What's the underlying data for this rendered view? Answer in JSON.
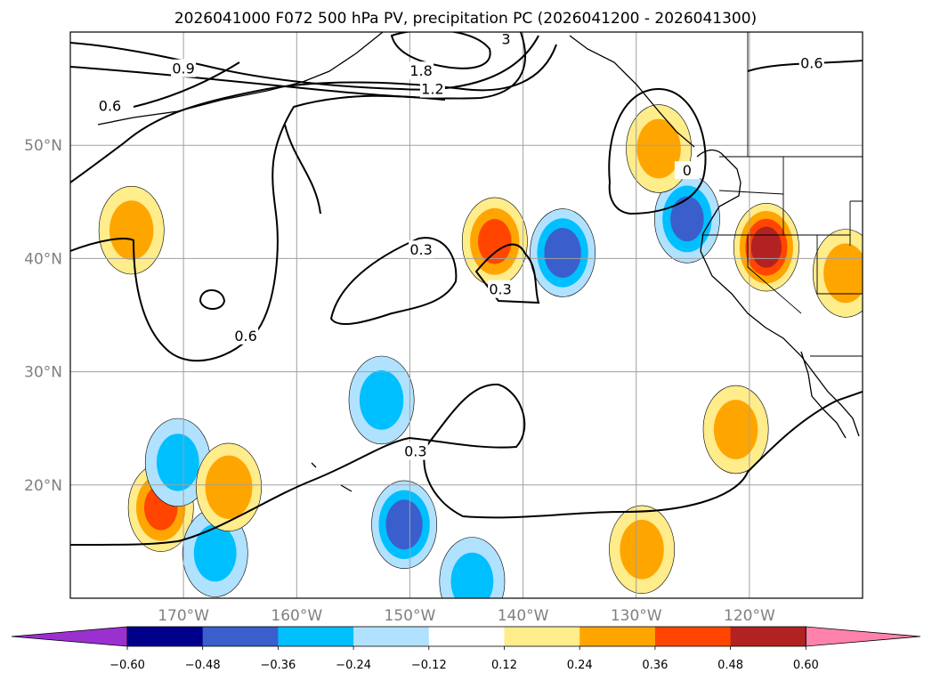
{
  "chart_data": {
    "type": "contour-map",
    "title": "2026041000 F072 500 hPa PV, precipitation PC (2026041200 - 2026041300)",
    "lon_range": [
      -180,
      -110
    ],
    "lat_range": [
      10,
      60
    ],
    "lat_ticks": [
      {
        "value": 50,
        "label": "50°N"
      },
      {
        "value": 40,
        "label": "40°N"
      },
      {
        "value": 30,
        "label": "30°N"
      },
      {
        "value": 20,
        "label": "20°N"
      }
    ],
    "lon_ticks": [
      {
        "value": -170,
        "label": "170°W"
      },
      {
        "value": -160,
        "label": "160°W"
      },
      {
        "value": -150,
        "label": "150°W"
      },
      {
        "value": -140,
        "label": "140°W"
      },
      {
        "value": -130,
        "label": "130°W"
      },
      {
        "value": -120,
        "label": "120°W"
      }
    ],
    "gridlines": true,
    "colorbar": {
      "position": "bottom",
      "extend": "both",
      "levels": [
        -0.6,
        -0.48,
        -0.36,
        -0.24,
        -0.12,
        0.12,
        0.24,
        0.36,
        0.48,
        0.6
      ],
      "tick_labels": [
        "−0.60",
        "−0.48",
        "−0.36",
        "−0.24",
        "−0.12",
        "0.12",
        "0.24",
        "0.36",
        "0.48",
        "0.60"
      ],
      "colors": [
        "#9b30d0",
        "#00008b",
        "#3a5fcd",
        "#00bfff",
        "#b0e2ff",
        "#ffffff",
        "#ffec8b",
        "#ffa500",
        "#ff4500",
        "#b22222",
        "#ff82ab"
      ]
    },
    "pv_contour_labels": [
      {
        "text": "0.9",
        "lon": -170.0,
        "lat": 56.8
      },
      {
        "text": "0.6",
        "lon": -176.5,
        "lat": 53.5
      },
      {
        "text": "1.8",
        "lon": -149.0,
        "lat": 56.6
      },
      {
        "text": "1.2",
        "lon": -148.0,
        "lat": 55.0
      },
      {
        "text": "3",
        "lon": -141.5,
        "lat": 59.4
      },
      {
        "text": "0.6",
        "lon": -114.5,
        "lat": 57.3
      },
      {
        "text": "0",
        "lon": -125.5,
        "lat": 47.8
      },
      {
        "text": "0.3",
        "lon": -149.0,
        "lat": 40.8
      },
      {
        "text": "0.3",
        "lon": -142.0,
        "lat": 37.3
      },
      {
        "text": "0.6",
        "lon": -164.5,
        "lat": 33.2
      },
      {
        "text": "0.3",
        "lon": -149.5,
        "lat": 23.0
      }
    ],
    "precip_anomalies": [
      {
        "lon": -142.5,
        "lat": 41.5,
        "value": 0.4
      },
      {
        "lon": -136.5,
        "lat": 40.5,
        "value": -0.45
      },
      {
        "lon": -118.5,
        "lat": 41.0,
        "value": 0.55
      },
      {
        "lon": -125.5,
        "lat": 43.5,
        "value": -0.4
      },
      {
        "lon": -128.0,
        "lat": 49.7,
        "value": 0.3
      },
      {
        "lon": -174.6,
        "lat": 42.5,
        "value": 0.3
      },
      {
        "lon": -152.5,
        "lat": 27.5,
        "value": -0.3
      },
      {
        "lon": -150.5,
        "lat": 16.5,
        "value": -0.45
      },
      {
        "lon": -172.0,
        "lat": 18.0,
        "value": 0.4
      },
      {
        "lon": -170.5,
        "lat": 22.0,
        "value": -0.28
      },
      {
        "lon": -167.2,
        "lat": 14.0,
        "value": -0.28
      },
      {
        "lon": -166.0,
        "lat": 19.8,
        "value": 0.35
      },
      {
        "lon": -129.5,
        "lat": 14.3,
        "value": 0.3
      },
      {
        "lon": -144.5,
        "lat": 11.5,
        "value": -0.28
      },
      {
        "lon": -111.5,
        "lat": 38.7,
        "value": 0.3
      },
      {
        "lon": -121.2,
        "lat": 24.9,
        "value": 0.3
      }
    ]
  }
}
